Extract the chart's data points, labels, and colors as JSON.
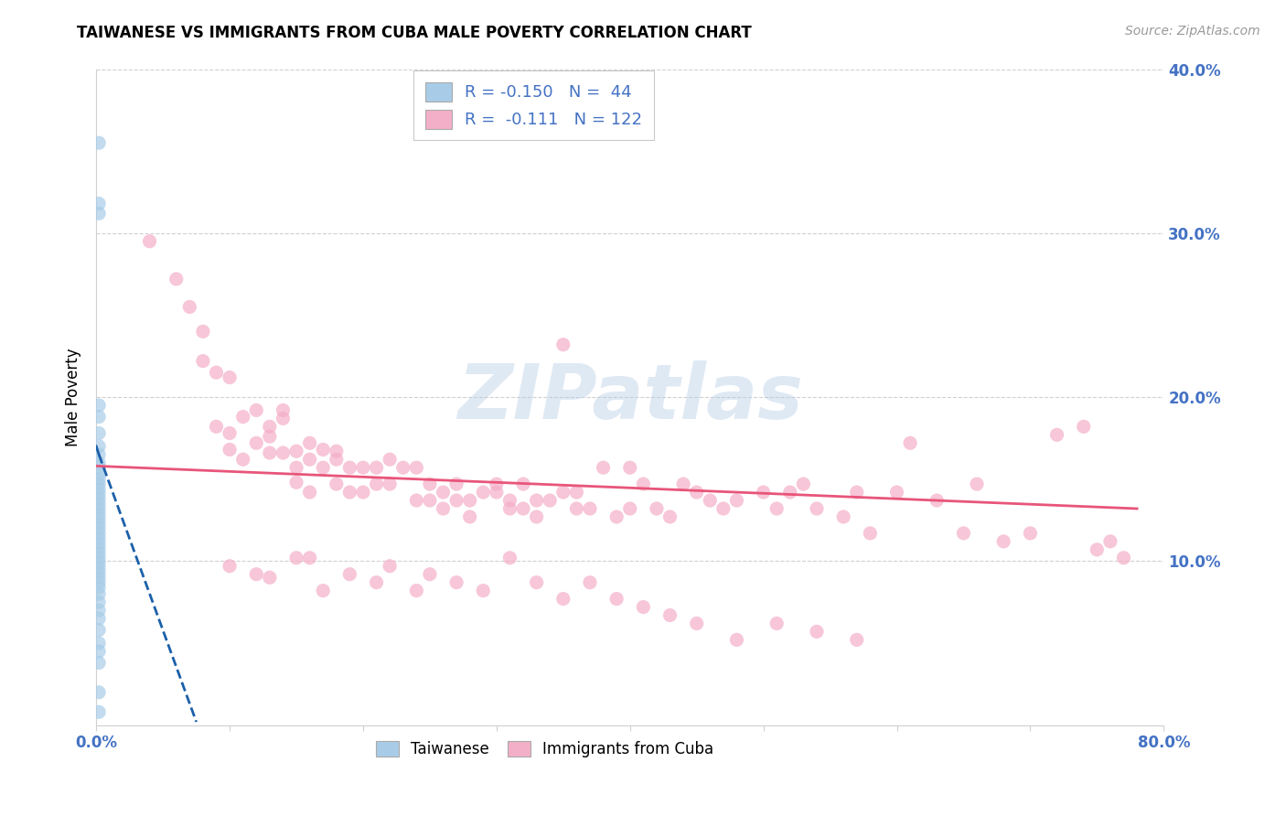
{
  "title": "TAIWANESE VS IMMIGRANTS FROM CUBA MALE POVERTY CORRELATION CHART",
  "source": "Source: ZipAtlas.com",
  "ylabel": "Male Poverty",
  "watermark": "ZIPatlas",
  "R_taiwanese": -0.15,
  "N_taiwanese": 44,
  "R_cuba": -0.111,
  "N_cuba": 122,
  "xlim": [
    0.0,
    0.8
  ],
  "ylim": [
    0.0,
    0.4
  ],
  "yticks": [
    0.1,
    0.2,
    0.3,
    0.4
  ],
  "xticks": [
    0.0,
    0.1,
    0.2,
    0.3,
    0.4,
    0.5,
    0.6,
    0.7,
    0.8
  ],
  "background_color": "#ffffff",
  "grid_color": "#d0d0d0",
  "blue_scatter_color": "#a8cce8",
  "pink_scatter_color": "#f4afc8",
  "blue_line_color": "#1a5fa8",
  "pink_line_color": "#e8557a",
  "tick_label_color": "#4472c4",
  "taiwanese_x": [
    0.002,
    0.002,
    0.002,
    0.002,
    0.002,
    0.002,
    0.002,
    0.002,
    0.002,
    0.002,
    0.002,
    0.002,
    0.002,
    0.002,
    0.002,
    0.002,
    0.002,
    0.002,
    0.002,
    0.002,
    0.002,
    0.002,
    0.002,
    0.002,
    0.002,
    0.002,
    0.002,
    0.002,
    0.002,
    0.002,
    0.002,
    0.002,
    0.002,
    0.002,
    0.002,
    0.002,
    0.002,
    0.002,
    0.002,
    0.002,
    0.002,
    0.002,
    0.002,
    0.002
  ],
  "taiwanese_y": [
    0.355,
    0.318,
    0.312,
    0.195,
    0.188,
    0.178,
    0.17,
    0.165,
    0.16,
    0.157,
    0.153,
    0.15,
    0.147,
    0.144,
    0.141,
    0.138,
    0.135,
    0.132,
    0.129,
    0.126,
    0.123,
    0.12,
    0.117,
    0.114,
    0.111,
    0.108,
    0.105,
    0.102,
    0.099,
    0.096,
    0.093,
    0.09,
    0.087,
    0.084,
    0.08,
    0.075,
    0.07,
    0.065,
    0.058,
    0.05,
    0.045,
    0.038,
    0.02,
    0.008
  ],
  "cuba_x": [
    0.04,
    0.06,
    0.07,
    0.08,
    0.08,
    0.09,
    0.09,
    0.1,
    0.1,
    0.1,
    0.11,
    0.11,
    0.12,
    0.12,
    0.13,
    0.13,
    0.13,
    0.14,
    0.14,
    0.14,
    0.15,
    0.15,
    0.15,
    0.16,
    0.16,
    0.16,
    0.17,
    0.17,
    0.18,
    0.18,
    0.18,
    0.19,
    0.19,
    0.2,
    0.2,
    0.21,
    0.21,
    0.22,
    0.22,
    0.23,
    0.24,
    0.24,
    0.25,
    0.25,
    0.26,
    0.26,
    0.27,
    0.27,
    0.28,
    0.28,
    0.29,
    0.3,
    0.3,
    0.31,
    0.31,
    0.32,
    0.32,
    0.33,
    0.33,
    0.34,
    0.35,
    0.35,
    0.36,
    0.36,
    0.37,
    0.38,
    0.39,
    0.4,
    0.4,
    0.41,
    0.42,
    0.43,
    0.44,
    0.45,
    0.46,
    0.47,
    0.48,
    0.5,
    0.51,
    0.52,
    0.53,
    0.54,
    0.56,
    0.57,
    0.58,
    0.6,
    0.61,
    0.63,
    0.65,
    0.66,
    0.68,
    0.7,
    0.72,
    0.74,
    0.75,
    0.76,
    0.77,
    0.1,
    0.12,
    0.13,
    0.15,
    0.16,
    0.17,
    0.19,
    0.21,
    0.22,
    0.24,
    0.25,
    0.27,
    0.29,
    0.31,
    0.33,
    0.35,
    0.37,
    0.39,
    0.41,
    0.43,
    0.45,
    0.48,
    0.51,
    0.54,
    0.57
  ],
  "cuba_y": [
    0.295,
    0.272,
    0.255,
    0.24,
    0.222,
    0.215,
    0.182,
    0.212,
    0.178,
    0.168,
    0.188,
    0.162,
    0.192,
    0.172,
    0.182,
    0.176,
    0.166,
    0.192,
    0.187,
    0.166,
    0.167,
    0.157,
    0.148,
    0.172,
    0.162,
    0.142,
    0.168,
    0.157,
    0.167,
    0.162,
    0.147,
    0.157,
    0.142,
    0.157,
    0.142,
    0.157,
    0.147,
    0.162,
    0.147,
    0.157,
    0.157,
    0.137,
    0.147,
    0.137,
    0.142,
    0.132,
    0.147,
    0.137,
    0.137,
    0.127,
    0.142,
    0.147,
    0.142,
    0.137,
    0.132,
    0.147,
    0.132,
    0.137,
    0.127,
    0.137,
    0.232,
    0.142,
    0.132,
    0.142,
    0.132,
    0.157,
    0.127,
    0.157,
    0.132,
    0.147,
    0.132,
    0.127,
    0.147,
    0.142,
    0.137,
    0.132,
    0.137,
    0.142,
    0.132,
    0.142,
    0.147,
    0.132,
    0.127,
    0.142,
    0.117,
    0.142,
    0.172,
    0.137,
    0.117,
    0.147,
    0.112,
    0.117,
    0.177,
    0.182,
    0.107,
    0.112,
    0.102,
    0.097,
    0.092,
    0.09,
    0.102,
    0.102,
    0.082,
    0.092,
    0.087,
    0.097,
    0.082,
    0.092,
    0.087,
    0.082,
    0.102,
    0.087,
    0.077,
    0.087,
    0.077,
    0.072,
    0.067,
    0.062,
    0.052,
    0.062,
    0.057,
    0.052
  ],
  "blue_line_x0": 0.0,
  "blue_line_y0": 0.17,
  "blue_line_x1": 0.002,
  "blue_line_y1": 0.165,
  "blue_line_dash_x0": 0.002,
  "blue_line_dash_y0": 0.165,
  "blue_line_dash_x1": 0.075,
  "blue_line_dash_y1": 0.002,
  "pink_line_x0": 0.0,
  "pink_line_y0": 0.158,
  "pink_line_x1": 0.78,
  "pink_line_y1": 0.132
}
